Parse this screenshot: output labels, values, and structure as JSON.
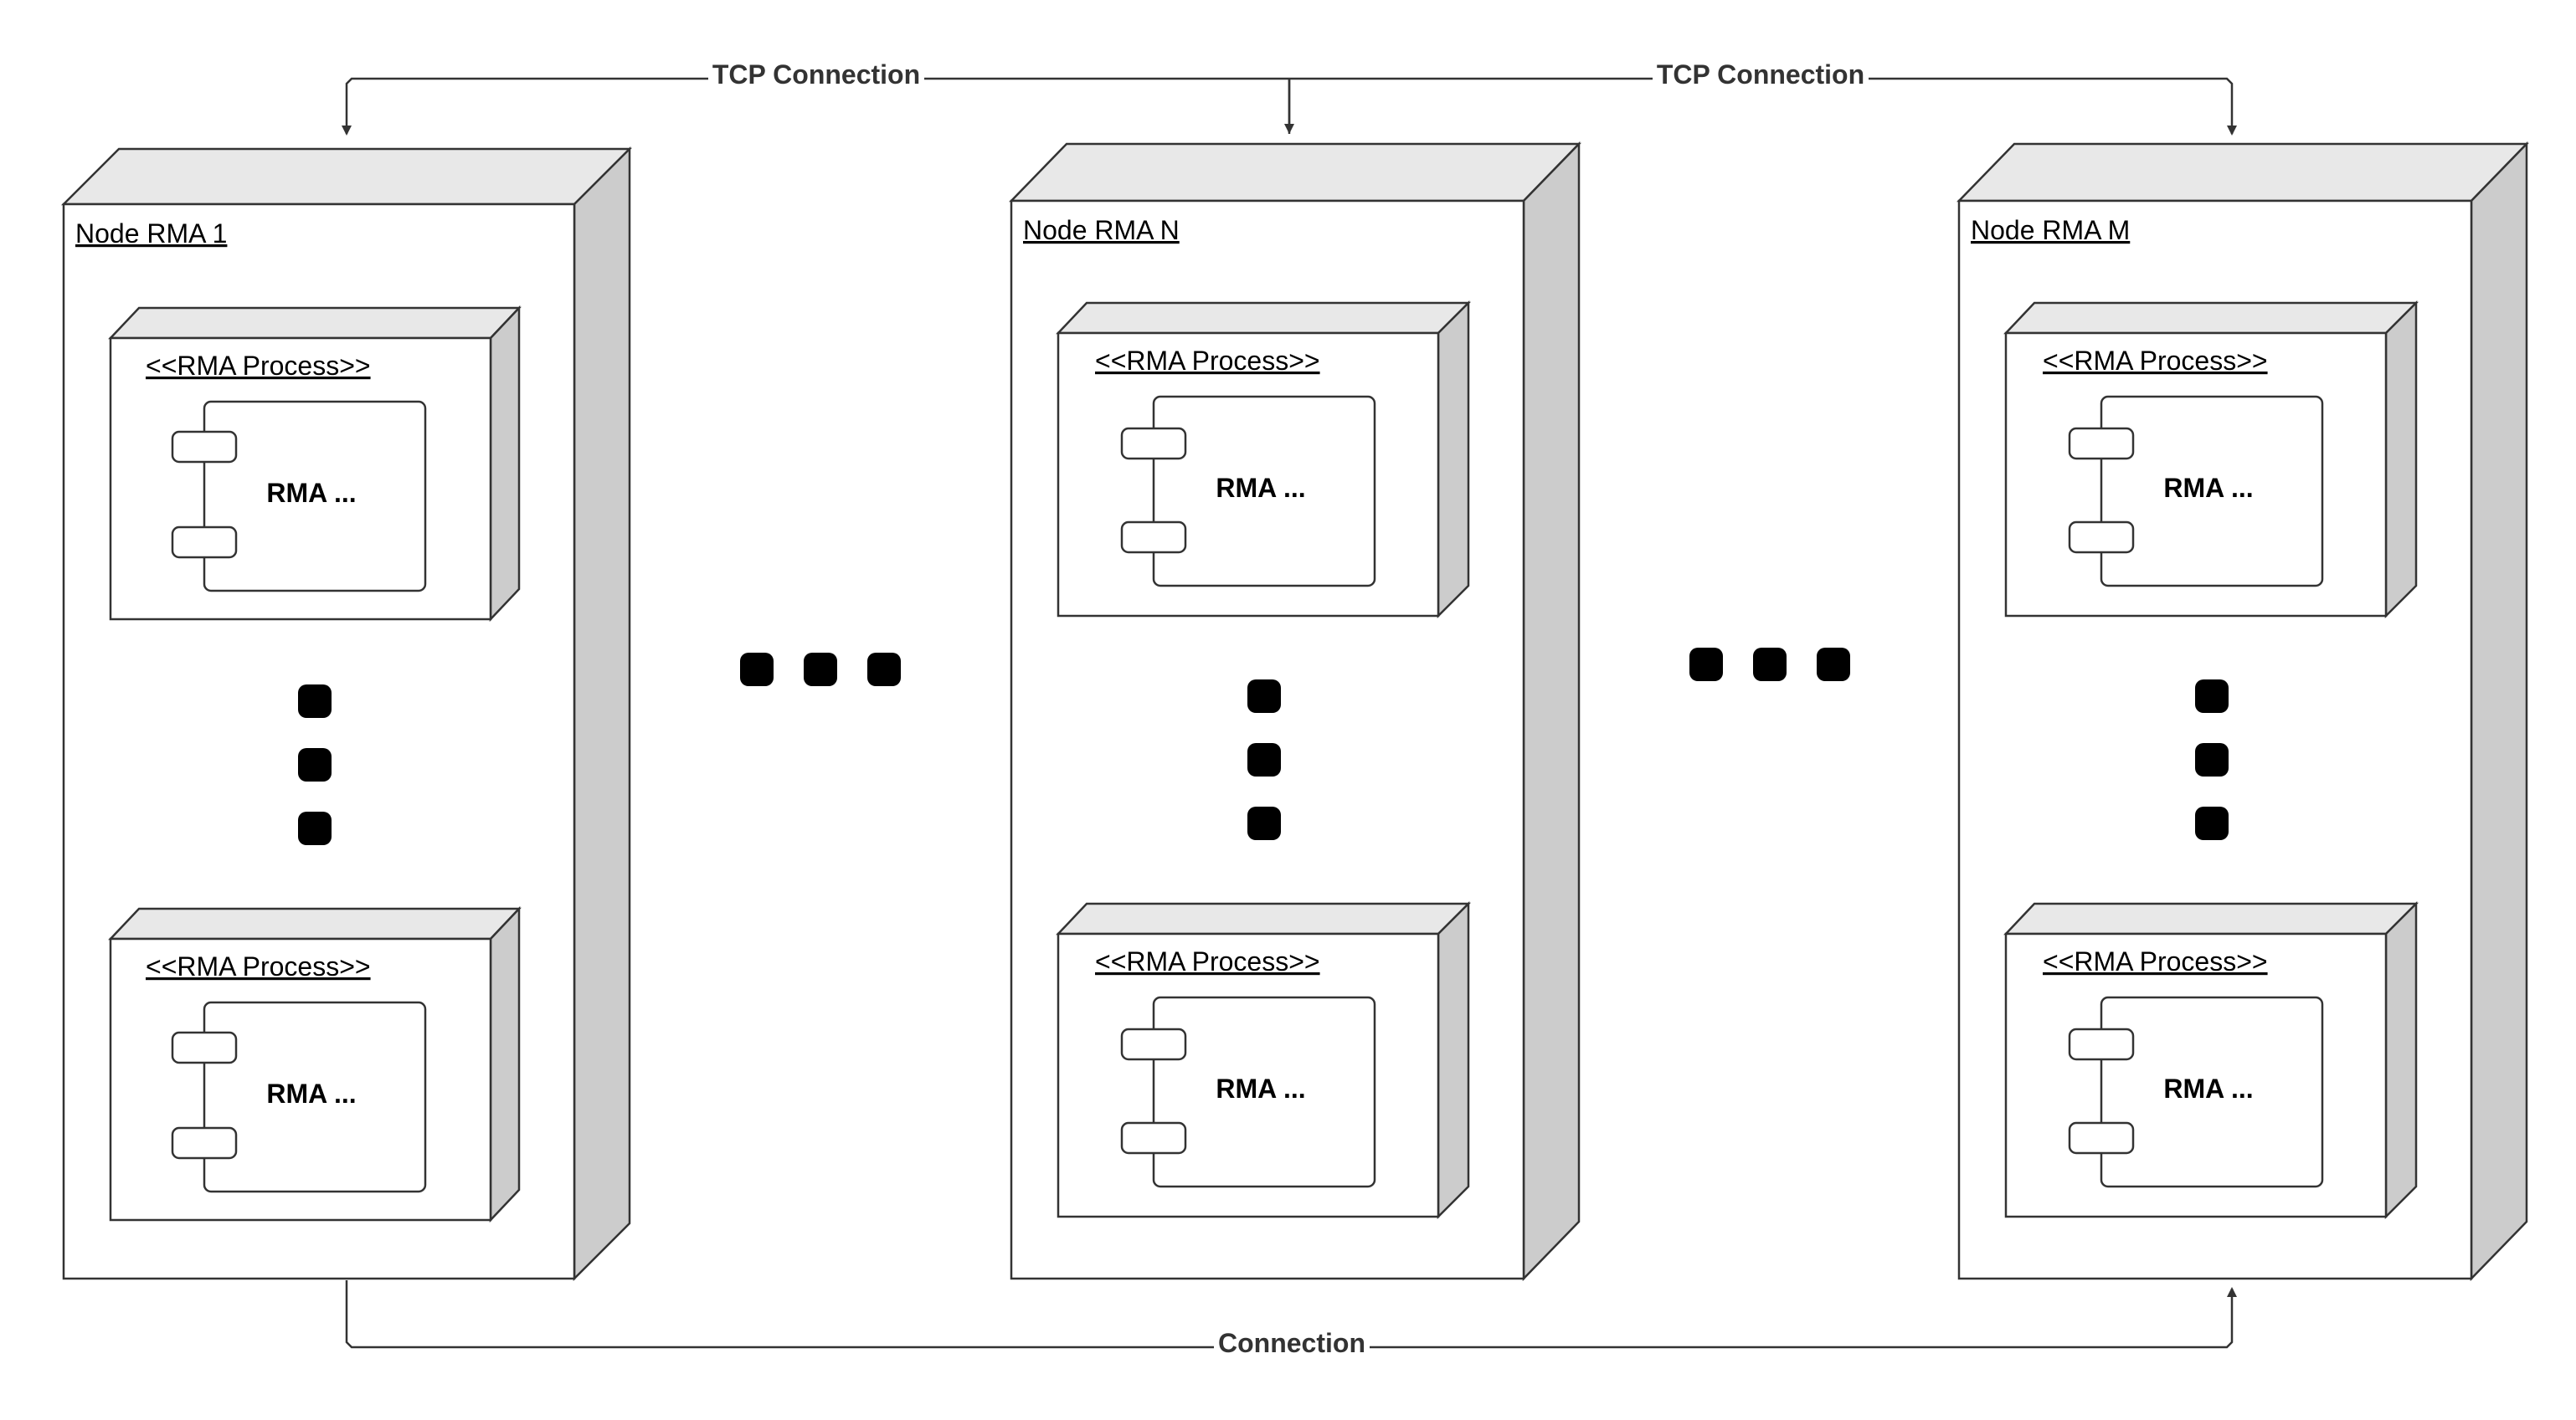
{
  "diagram": {
    "type": "deployment",
    "nodes": [
      {
        "id": "rma-1",
        "title": "Node RMA 1",
        "processes": [
          {
            "stereotype": "<<RMA Process>>",
            "component": "RMA ..."
          },
          {
            "stereotype": "<<RMA Process>>",
            "component": "RMA ..."
          }
        ]
      },
      {
        "id": "rma-n",
        "title": "Node RMA N",
        "processes": [
          {
            "stereotype": "<<RMA Process>>",
            "component": "RMA ..."
          },
          {
            "stereotype": "<<RMA Process>>",
            "component": "RMA ..."
          }
        ]
      },
      {
        "id": "rma-m",
        "title": "Node RMA M",
        "processes": [
          {
            "stereotype": "<<RMA Process>>",
            "component": "RMA ..."
          },
          {
            "stereotype": "<<RMA Process>>",
            "component": "RMA ..."
          }
        ]
      }
    ],
    "connections": [
      {
        "from": "rma-n",
        "to": "rma-1",
        "label": "TCP Connection"
      },
      {
        "from": "rma-n",
        "to": "rma-m",
        "label": "TCP Connection"
      },
      {
        "from": "rma-1",
        "to": "rma-m",
        "label": "Connection"
      }
    ],
    "ellipsis": "...",
    "colors": {
      "stroke": "#333333",
      "face": "#ffffff",
      "top_face": "#e8e8e8",
      "side_face": "#cccccc",
      "dot": "#000000",
      "connector": "#333333"
    }
  }
}
